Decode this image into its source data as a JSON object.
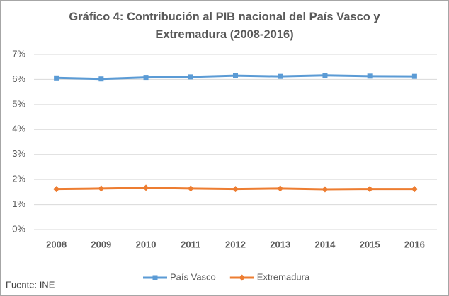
{
  "chart_data": {
    "type": "line",
    "title": "Gráfico 4: Contribución al PIB nacional del País Vasco y Extremadura (2008-2016)",
    "categories": [
      "2008",
      "2009",
      "2010",
      "2011",
      "2012",
      "2013",
      "2014",
      "2015",
      "2016"
    ],
    "series": [
      {
        "name": "País Vasco",
        "color": "#5b9bd5",
        "marker": "square",
        "values": [
          6.06,
          6.02,
          6.08,
          6.1,
          6.15,
          6.12,
          6.16,
          6.13,
          6.12
        ]
      },
      {
        "name": "Extremadura",
        "color": "#ed7d31",
        "marker": "diamond",
        "values": [
          1.62,
          1.64,
          1.67,
          1.64,
          1.62,
          1.64,
          1.61,
          1.62,
          1.62
        ]
      }
    ],
    "ylim": [
      0,
      7
    ],
    "yticks": [
      {
        "value": 0,
        "label": "0%"
      },
      {
        "value": 1,
        "label": "1%"
      },
      {
        "value": 2,
        "label": "2%"
      },
      {
        "value": 3,
        "label": "3%"
      },
      {
        "value": 4,
        "label": "4%"
      },
      {
        "value": 5,
        "label": "5%"
      },
      {
        "value": 6,
        "label": "6%"
      },
      {
        "value": 7,
        "label": "7%"
      }
    ],
    "grid": true,
    "legend": "bottom",
    "source": "Fuente: INE"
  }
}
